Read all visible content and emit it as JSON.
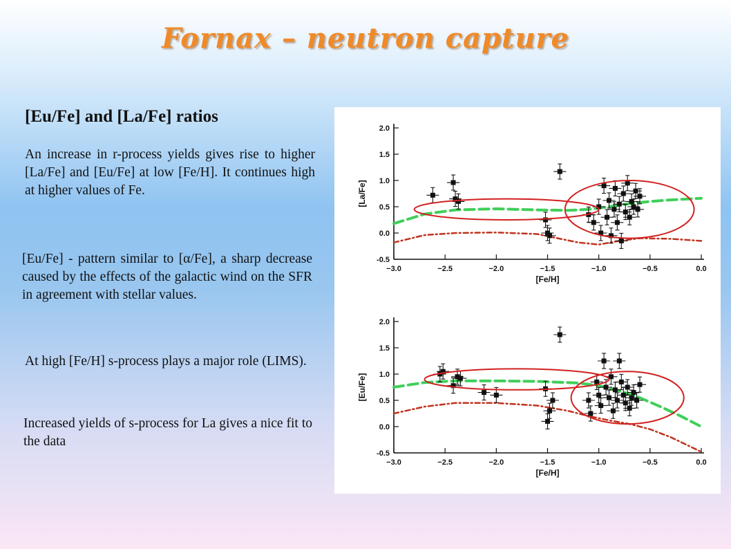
{
  "slide": {
    "title": "Fornax – neutron capture",
    "heading": "[Eu/Fe] and [La/Fe] ratios",
    "paragraphs": [
      "An increase in r-process yields gives rise to higher [La/Fe] and [Eu/Fe] at low [Fe/H]. It continues high at higher values of Fe.",
      "[Eu/Fe] - pattern similar to [α/Fe], a sharp decrease caused by the effects of the galactic wind on the SFR in agreement with stellar values.",
      "At high [Fe/H] s-process plays a major role (LIMS).",
      "Increased yields of s-process for La gives a nice fit to the data"
    ]
  },
  "chart_data": [
    {
      "type": "scatter",
      "title": "",
      "xlabel": "[Fe/H]",
      "ylabel": "[La/Fe]",
      "xlim": [
        -3.0,
        0.0
      ],
      "ylim": [
        -0.5,
        2.0
      ],
      "xticks": [
        "-3.0",
        "-2.5",
        "-2.0",
        "-1.5",
        "-1.0",
        "-0.5",
        "0.0"
      ],
      "yticks": [
        "-0.5",
        "0.0",
        "0.5",
        "1.0",
        "1.5",
        "2.0"
      ],
      "points": [
        {
          "x": -2.62,
          "y": 0.72
        },
        {
          "x": -2.42,
          "y": 0.96
        },
        {
          "x": -2.4,
          "y": 0.65
        },
        {
          "x": -2.37,
          "y": 0.6
        },
        {
          "x": -1.38,
          "y": 1.17
        },
        {
          "x": -1.52,
          "y": 0.25
        },
        {
          "x": -1.5,
          "y": 0.0
        },
        {
          "x": -1.48,
          "y": -0.05
        },
        {
          "x": -1.1,
          "y": 0.35
        },
        {
          "x": -1.05,
          "y": 0.2
        },
        {
          "x": -1.0,
          "y": 0.5
        },
        {
          "x": -0.98,
          "y": 0.0
        },
        {
          "x": -0.95,
          "y": 0.9
        },
        {
          "x": -0.92,
          "y": 0.3
        },
        {
          "x": -0.9,
          "y": 0.62
        },
        {
          "x": -0.88,
          "y": -0.05
        },
        {
          "x": -0.85,
          "y": 0.45
        },
        {
          "x": -0.84,
          "y": 0.85
        },
        {
          "x": -0.82,
          "y": 0.2
        },
        {
          "x": -0.8,
          "y": 0.55
        },
        {
          "x": -0.78,
          "y": -0.15
        },
        {
          "x": -0.76,
          "y": 0.75
        },
        {
          "x": -0.74,
          "y": 0.4
        },
        {
          "x": -0.72,
          "y": 0.95
        },
        {
          "x": -0.7,
          "y": 0.3
        },
        {
          "x": -0.68,
          "y": 0.6
        },
        {
          "x": -0.66,
          "y": 0.5
        },
        {
          "x": -0.64,
          "y": 0.8
        },
        {
          "x": -0.62,
          "y": 0.45
        },
        {
          "x": -0.6,
          "y": 0.7
        }
      ],
      "models": [
        {
          "color": "#3fcf5a",
          "style": "dashed",
          "x": [
            -3.0,
            -2.7,
            -2.4,
            -2.0,
            -1.6,
            -1.3,
            -1.1,
            -0.9,
            -0.7,
            -0.5,
            -0.3,
            0.0
          ],
          "y": [
            0.18,
            0.36,
            0.44,
            0.46,
            0.44,
            0.43,
            0.45,
            0.5,
            0.56,
            0.6,
            0.63,
            0.66
          ]
        },
        {
          "color": "#c0321e",
          "style": "dash-dot",
          "x": [
            -3.0,
            -2.7,
            -2.4,
            -2.0,
            -1.6,
            -1.4,
            -1.2,
            -1.0,
            -0.8,
            -0.6,
            -0.3,
            0.0
          ],
          "y": [
            -0.18,
            -0.04,
            0.0,
            0.01,
            -0.02,
            -0.1,
            -0.18,
            -0.22,
            -0.15,
            -0.1,
            -0.11,
            -0.15
          ]
        }
      ],
      "highlight_ellipses": [
        {
          "center": {
            "x": -1.9,
            "y": 0.45
          },
          "rx": 0.9,
          "ry": 0.2
        },
        {
          "center": {
            "x": -0.7,
            "y": 0.45
          },
          "rx": 0.63,
          "ry": 0.55
        }
      ],
      "highlight_color": "#d22020"
    },
    {
      "type": "scatter",
      "title": "",
      "xlabel": "[Fe/H]",
      "ylabel": "[Eu/Fe]",
      "xlim": [
        -3.0,
        0.0
      ],
      "ylim": [
        -0.5,
        2.0
      ],
      "xticks": [
        "-3.0",
        "-2.5",
        "-2.0",
        "-1.5",
        "-1.0",
        "-0.5",
        "0.0"
      ],
      "yticks": [
        "-0.5",
        "0.0",
        "0.5",
        "1.0",
        "1.5",
        "2.0"
      ],
      "points": [
        {
          "x": -2.55,
          "y": 1.0
        },
        {
          "x": -2.52,
          "y": 1.05
        },
        {
          "x": -2.42,
          "y": 0.78
        },
        {
          "x": -2.38,
          "y": 0.95
        },
        {
          "x": -2.35,
          "y": 0.92
        },
        {
          "x": -2.12,
          "y": 0.65
        },
        {
          "x": -2.0,
          "y": 0.6
        },
        {
          "x": -1.52,
          "y": 0.72
        },
        {
          "x": -1.48,
          "y": 0.3
        },
        {
          "x": -1.45,
          "y": 0.5
        },
        {
          "x": -1.5,
          "y": 0.1
        },
        {
          "x": -1.38,
          "y": 1.75
        },
        {
          "x": -1.1,
          "y": 0.5
        },
        {
          "x": -1.08,
          "y": 0.25
        },
        {
          "x": -1.02,
          "y": 0.85
        },
        {
          "x": -1.0,
          "y": 0.6
        },
        {
          "x": -0.98,
          "y": 0.4
        },
        {
          "x": -0.95,
          "y": 1.25
        },
        {
          "x": -0.93,
          "y": 0.75
        },
        {
          "x": -0.9,
          "y": 0.55
        },
        {
          "x": -0.88,
          "y": 0.95
        },
        {
          "x": -0.86,
          "y": 0.3
        },
        {
          "x": -0.84,
          "y": 0.7
        },
        {
          "x": -0.82,
          "y": 0.5
        },
        {
          "x": -0.8,
          "y": 1.25
        },
        {
          "x": -0.78,
          "y": 0.85
        },
        {
          "x": -0.76,
          "y": 0.6
        },
        {
          "x": -0.74,
          "y": 0.45
        },
        {
          "x": -0.72,
          "y": 0.75
        },
        {
          "x": -0.7,
          "y": 0.35
        },
        {
          "x": -0.68,
          "y": 0.55
        },
        {
          "x": -0.66,
          "y": 0.65
        },
        {
          "x": -0.63,
          "y": 0.5
        },
        {
          "x": -0.6,
          "y": 0.8
        }
      ],
      "models": [
        {
          "color": "#3fcf5a",
          "style": "dashed",
          "x": [
            -3.0,
            -2.7,
            -2.4,
            -2.0,
            -1.6,
            -1.2,
            -1.0,
            -0.8,
            -0.6,
            -0.4,
            -0.2,
            0.0
          ],
          "y": [
            0.75,
            0.84,
            0.87,
            0.87,
            0.86,
            0.83,
            0.78,
            0.68,
            0.55,
            0.38,
            0.2,
            0.0
          ]
        },
        {
          "color": "#c0321e",
          "style": "dash-dot",
          "x": [
            -3.0,
            -2.7,
            -2.4,
            -2.0,
            -1.6,
            -1.3,
            -1.1,
            -0.9,
            -0.7,
            -0.5,
            -0.3,
            0.0
          ],
          "y": [
            0.25,
            0.38,
            0.45,
            0.45,
            0.4,
            0.3,
            0.2,
            0.12,
            0.05,
            -0.05,
            -0.2,
            -0.48
          ]
        }
      ],
      "highlight_ellipses": [
        {
          "center": {
            "x": -1.8,
            "y": 0.9
          },
          "rx": 0.9,
          "ry": 0.2
        },
        {
          "center": {
            "x": -0.72,
            "y": 0.55
          },
          "rx": 0.55,
          "ry": 0.5
        }
      ],
      "highlight_color": "#d22020"
    }
  ]
}
